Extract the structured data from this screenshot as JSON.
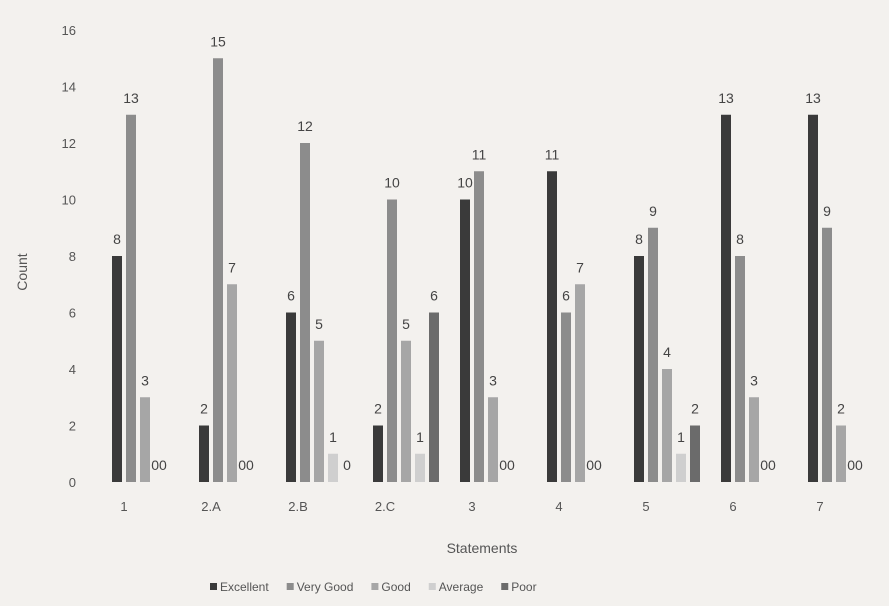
{
  "chart_data": {
    "type": "bar",
    "title": "",
    "xlabel": "Statements",
    "ylabel": "Count",
    "ylim": [
      0,
      16
    ],
    "yticks": [
      0,
      2,
      4,
      6,
      8,
      10,
      12,
      14,
      16
    ],
    "grid": false,
    "legend_position": "bottom",
    "categories": [
      "1",
      "2.A",
      "2.B",
      "2.C",
      "3",
      "4",
      "5",
      "6",
      "7"
    ],
    "series": [
      {
        "name": "Excellent",
        "color": "#3a3a3a",
        "values": [
          8,
          2,
          6,
          2,
          10,
          11,
          8,
          13,
          13
        ]
      },
      {
        "name": "Very Good",
        "color": "#8c8c8c",
        "values": [
          13,
          15,
          12,
          10,
          11,
          6,
          9,
          8,
          9
        ]
      },
      {
        "name": "Good",
        "color": "#a6a6a6",
        "values": [
          3,
          7,
          5,
          5,
          3,
          7,
          4,
          3,
          2
        ]
      },
      {
        "name": "Average",
        "color": "#cfcfcf",
        "values": [
          0,
          0,
          1,
          1,
          0,
          0,
          1,
          0,
          0
        ]
      },
      {
        "name": "Poor",
        "color": "#6b6b6b",
        "values": [
          0,
          0,
          0,
          6,
          0,
          0,
          2,
          0,
          0
        ]
      }
    ],
    "data_labels": [
      [
        "8",
        "13",
        "3",
        "00",
        ""
      ],
      [
        "2",
        "15",
        "7",
        "00",
        ""
      ],
      [
        "6",
        "12",
        "5",
        "1",
        "0"
      ],
      [
        "2",
        "10",
        "5",
        "1",
        "6"
      ],
      [
        "10",
        "11",
        "3",
        "00",
        ""
      ],
      [
        "11",
        "6",
        "7",
        "00",
        ""
      ],
      [
        "8",
        "9",
        "4",
        "1",
        "2"
      ],
      [
        "13",
        "8",
        "3",
        "00",
        ""
      ],
      [
        "13",
        "9",
        "2",
        "00",
        ""
      ]
    ]
  }
}
